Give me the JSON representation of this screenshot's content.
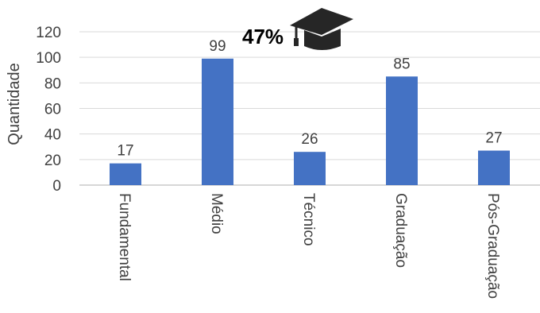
{
  "chart_data": {
    "type": "bar",
    "title": "",
    "xlabel": "",
    "ylabel": "Quantidade",
    "categories": [
      "Fundamental",
      "Médio",
      "Técnico",
      "Graduação",
      "Pós-Graduação"
    ],
    "values": [
      17,
      99,
      26,
      85,
      27
    ],
    "data_labels": [
      "17",
      "99",
      "26",
      "85",
      "27"
    ],
    "ylim": [
      0,
      120
    ],
    "yticks": [
      "0",
      "20",
      "40",
      "60",
      "80",
      "100",
      "120"
    ],
    "grid": true,
    "bar_color": "#4472C4",
    "annotation": {
      "text": "47%",
      "icon": "graduation-cap-icon",
      "near_category": "Médio"
    }
  }
}
